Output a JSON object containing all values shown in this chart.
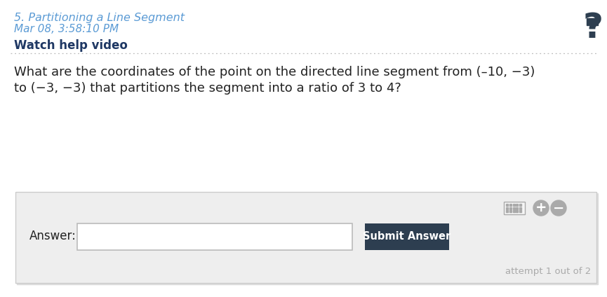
{
  "title": "5. Partitioning a Line Segment",
  "subtitle": "Mar 08, 3:58:10 PM",
  "watch_help": "Watch help video",
  "question_text": "What are the coordinates of the point on the directed line segment from (–10, −3)",
  "question_text2": "to (−3, −3) that partitions the segment into a ratio of 3 to 4?",
  "answer_label": "Answer:",
  "submit_button": "Submit Answer",
  "attempt_text": "attempt 1 out of 2",
  "title_color": "#5b9bd5",
  "subtitle_color": "#5b9bd5",
  "watch_color": "#1f3864",
  "question_color": "#222222",
  "bg_color": "#ffffff",
  "panel_bg": "#eeeeee",
  "panel_border": "#cccccc",
  "button_color": "#2d3e50",
  "button_text_color": "#ffffff",
  "attempt_color": "#aaaaaa",
  "input_border": "#bbbbbb",
  "question_mark_color": "#2d3e50",
  "dotted_line_color": "#bbbbbb",
  "icon_color": "#aaaaaa",
  "shadow_color": "#dddddd"
}
